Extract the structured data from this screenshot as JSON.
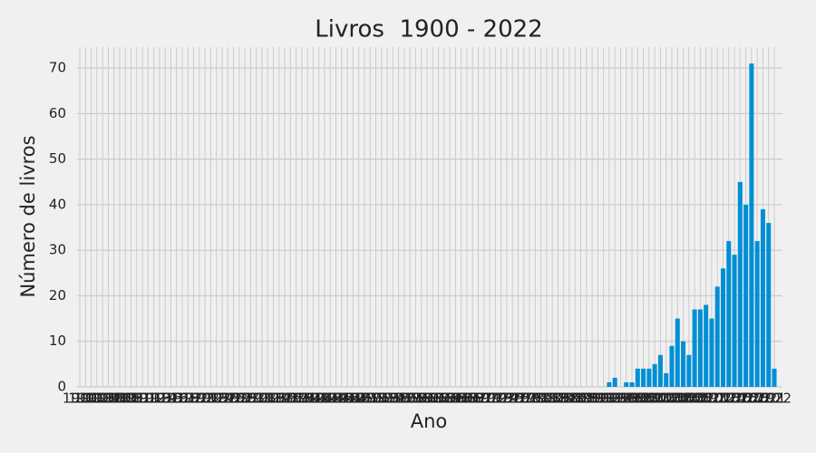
{
  "chart_data": {
    "type": "bar",
    "title": "Livros  1900 - 2022",
    "x_label": "Ano",
    "y_label": "Número de livros",
    "categories": [
      "1900",
      "1901",
      "1902",
      "1903",
      "1904",
      "1905",
      "1906",
      "1907",
      "1908",
      "1909",
      "1910",
      "1911",
      "1912",
      "1913",
      "1914",
      "1915",
      "1916",
      "1917",
      "1918",
      "1919",
      "1920",
      "1921",
      "1922",
      "1923",
      "1924",
      "1925",
      "1926",
      "1927",
      "1928",
      "1929",
      "1930",
      "1931",
      "1932",
      "1933",
      "1934",
      "1935",
      "1936",
      "1937",
      "1938",
      "1939",
      "1940",
      "1941",
      "1942",
      "1943",
      "1944",
      "1945",
      "1946",
      "1947",
      "1948",
      "1949",
      "1950",
      "1951",
      "1952",
      "1953",
      "1954",
      "1955",
      "1956",
      "1957",
      "1958",
      "1959",
      "1960",
      "1961",
      "1962",
      "1963",
      "1964",
      "1965",
      "1966",
      "1967",
      "1968",
      "1969",
      "1970",
      "1971",
      "1972",
      "1973",
      "1974",
      "1975",
      "1976",
      "1977",
      "1978",
      "1979",
      "1980",
      "1981",
      "1982",
      "1983",
      "1984",
      "1985",
      "1986",
      "1987",
      "1988",
      "1989",
      "1990",
      "1991",
      "1992",
      "1993",
      "1994",
      "1995",
      "1996",
      "1997",
      "1998",
      "1999",
      "2000",
      "2001",
      "2002",
      "2003",
      "2004",
      "2005",
      "2006",
      "2007",
      "2008",
      "2009",
      "2010",
      "2011",
      "2012",
      "2013",
      "2014",
      "2015",
      "2016",
      "2017",
      "2018",
      "2019",
      "2020",
      "2021",
      "2022"
    ],
    "values": [
      0,
      0,
      0,
      0,
      0,
      0,
      0,
      0,
      0,
      0,
      0,
      0,
      0,
      0,
      0,
      0,
      0,
      0,
      0,
      0,
      0,
      0,
      0,
      0,
      0,
      0,
      0,
      0,
      0,
      0,
      0,
      0,
      0,
      0,
      0,
      0,
      0,
      0,
      0,
      0,
      0,
      0,
      0,
      0,
      0,
      0,
      0,
      0,
      0,
      0,
      0,
      0,
      0,
      0,
      0,
      0,
      0,
      0,
      0,
      0,
      0,
      0,
      0,
      0,
      0,
      0,
      0,
      0,
      0,
      0,
      0,
      0,
      0,
      0,
      0,
      0,
      0,
      0,
      0,
      0,
      0,
      0,
      0,
      0,
      0,
      0,
      0,
      0,
      0,
      0,
      0,
      0,
      0,
      1,
      2,
      0,
      1,
      1,
      4,
      4,
      4,
      5,
      7,
      3,
      9,
      15,
      10,
      7,
      17,
      17,
      18,
      15,
      22,
      26,
      32,
      29,
      45,
      40,
      71,
      32,
      39,
      36,
      4
    ],
    "color": "#008fd5",
    "ylim": [
      0,
      74.6
    ],
    "yticks": [
      0,
      10,
      20,
      30,
      40,
      50,
      60,
      70
    ],
    "grid": true
  }
}
